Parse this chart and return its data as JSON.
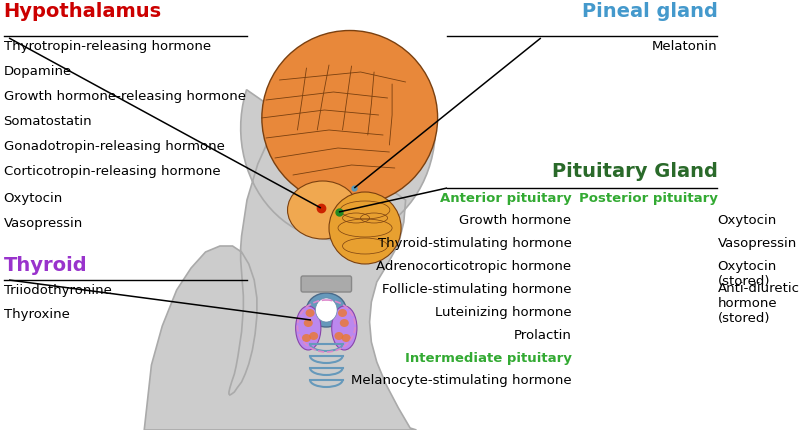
{
  "bg_color": "#ffffff",
  "hypothalamus_label": "Hypothalamus",
  "hypothalamus_color": "#cc0000",
  "hypothalamus_hormones": [
    "Thyrotropin-releasing hormone",
    "Dopamine",
    "Growth hormone-releasing hormone",
    "Somatostatin",
    "Gonadotropin-releasing hormone",
    "Corticotropin-releasing hormone",
    "Oxytocin",
    "Vasopressin"
  ],
  "pineal_label": "Pineal gland",
  "pineal_color": "#4499cc",
  "pineal_hormones": [
    "Melatonin"
  ],
  "pituitary_label": "Pituitary Gland",
  "pituitary_color": "#2a6a2a",
  "anterior_label": "Anterior pituitary",
  "anterior_color": "#33aa33",
  "anterior_hormones": [
    "Growth hormone",
    "Thyroid-stimulating hormone",
    "Adrenocorticotropic hormone",
    "Follicle-stimulating hormone",
    "Luteinizing hormone",
    "Prolactin"
  ],
  "posterior_label": "Posterior pituitary",
  "posterior_color": "#33aa33",
  "posterior_hormones": [
    "Oxytocin",
    "Vasopressin",
    "Oxytocin (stored)",
    "Anti-diuretic\nhormone (stored)"
  ],
  "intermediate_label": "Intermediate pituitary",
  "intermediate_color": "#33aa33",
  "intermediate_hormones": [
    "Melanocyte-stimulating hormone"
  ],
  "thyroid_label": "Thyroid",
  "thyroid_color": "#9933cc",
  "thyroid_hormones": [
    "Triiodothyronine",
    "Thyroxine"
  ],
  "head_color": "#cccccc",
  "head_edge": "#aaaaaa",
  "brain_color": "#e8883a",
  "brain_edge": "#7a4010",
  "cerebellum_color": "#f0b060",
  "hypo_dot_color": "#cc2200",
  "pituitary_dot_color": "#228822",
  "pineal_dot_color": "#5599bb",
  "thyroid_purple": "#bb88ee",
  "thyroid_blue": "#6699bb",
  "thyroid_orange": "#ee7722"
}
